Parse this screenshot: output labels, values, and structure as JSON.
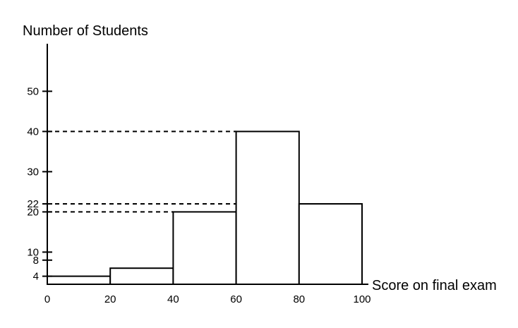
{
  "chart_data": {
    "type": "bar",
    "title": "",
    "xlabel": "Score on final exam",
    "ylabel": "Number of Students",
    "bins": [
      {
        "x0": 0,
        "x1": 20,
        "value": 4
      },
      {
        "x0": 20,
        "x1": 40,
        "value": 6
      },
      {
        "x0": 40,
        "x1": 60,
        "value": 20
      },
      {
        "x0": 60,
        "x1": 80,
        "value": 40
      },
      {
        "x0": 80,
        "x1": 100,
        "value": 22
      }
    ],
    "x_ticks": [
      0,
      20,
      40,
      60,
      80,
      100
    ],
    "y_ticks": [
      4,
      8,
      10,
      20,
      22,
      30,
      40,
      50
    ],
    "reference_lines": [
      20,
      22,
      40
    ],
    "xlim": [
      0,
      100
    ],
    "ylim": [
      0,
      60
    ],
    "grid": false,
    "legend": "none"
  }
}
